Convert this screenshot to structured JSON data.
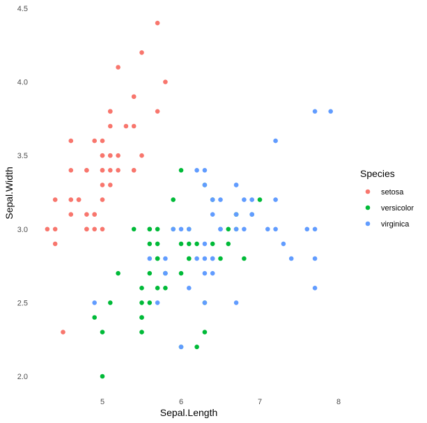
{
  "chart_data": {
    "type": "scatter",
    "xlabel": "Sepal.Length",
    "ylabel": "Sepal.Width",
    "xlim": [
      4.3,
      8.7
    ],
    "ylim": [
      1.95,
      4.5
    ],
    "x_ticks": [
      "5",
      "6",
      "7",
      "8"
    ],
    "y_ticks": [
      "2.0",
      "2.5",
      "3.0",
      "3.5",
      "4.0",
      "4.5"
    ],
    "grid": false,
    "legend": {
      "title": "Species",
      "position": "right"
    },
    "series": [
      {
        "name": "setosa",
        "color": "#F8766D",
        "points": [
          [
            5.1,
            3.5
          ],
          [
            4.9,
            3.0
          ],
          [
            4.7,
            3.2
          ],
          [
            4.6,
            3.1
          ],
          [
            5.0,
            3.6
          ],
          [
            5.4,
            3.9
          ],
          [
            4.6,
            3.4
          ],
          [
            5.0,
            3.4
          ],
          [
            4.4,
            2.9
          ],
          [
            4.9,
            3.1
          ],
          [
            5.4,
            3.7
          ],
          [
            4.8,
            3.4
          ],
          [
            4.8,
            3.0
          ],
          [
            4.3,
            3.0
          ],
          [
            5.8,
            4.0
          ],
          [
            5.7,
            4.4
          ],
          [
            5.4,
            3.9
          ],
          [
            5.1,
            3.5
          ],
          [
            5.7,
            3.8
          ],
          [
            5.1,
            3.8
          ],
          [
            5.4,
            3.4
          ],
          [
            5.1,
            3.7
          ],
          [
            4.6,
            3.6
          ],
          [
            5.1,
            3.3
          ],
          [
            4.8,
            3.4
          ],
          [
            5.0,
            3.0
          ],
          [
            5.0,
            3.4
          ],
          [
            5.2,
            3.5
          ],
          [
            5.2,
            3.4
          ],
          [
            4.7,
            3.2
          ],
          [
            4.8,
            3.1
          ],
          [
            5.4,
            3.4
          ],
          [
            5.2,
            4.1
          ],
          [
            5.5,
            4.2
          ],
          [
            4.9,
            3.1
          ],
          [
            5.0,
            3.2
          ],
          [
            5.5,
            3.5
          ],
          [
            4.9,
            3.6
          ],
          [
            4.4,
            3.0
          ],
          [
            5.1,
            3.4
          ],
          [
            5.0,
            3.5
          ],
          [
            4.5,
            2.3
          ],
          [
            4.4,
            3.2
          ],
          [
            5.0,
            3.5
          ],
          [
            5.1,
            3.8
          ],
          [
            4.8,
            3.0
          ],
          [
            5.1,
            3.8
          ],
          [
            4.6,
            3.2
          ],
          [
            5.3,
            3.7
          ],
          [
            5.0,
            3.3
          ]
        ]
      },
      {
        "name": "versicolor",
        "color": "#00BA38",
        "points": [
          [
            7.0,
            3.2
          ],
          [
            6.4,
            3.2
          ],
          [
            6.9,
            3.1
          ],
          [
            5.5,
            2.3
          ],
          [
            6.5,
            2.8
          ],
          [
            5.7,
            2.8
          ],
          [
            6.3,
            3.3
          ],
          [
            4.9,
            2.4
          ],
          [
            6.6,
            2.9
          ],
          [
            5.2,
            2.7
          ],
          [
            5.0,
            2.0
          ],
          [
            5.9,
            3.0
          ],
          [
            6.0,
            2.2
          ],
          [
            6.1,
            2.9
          ],
          [
            5.6,
            2.9
          ],
          [
            6.7,
            3.1
          ],
          [
            5.6,
            3.0
          ],
          [
            5.8,
            2.7
          ],
          [
            6.2,
            2.2
          ],
          [
            5.6,
            2.5
          ],
          [
            5.9,
            3.2
          ],
          [
            6.1,
            2.8
          ],
          [
            6.3,
            2.5
          ],
          [
            6.1,
            2.8
          ],
          [
            6.4,
            2.9
          ],
          [
            6.6,
            3.0
          ],
          [
            6.8,
            2.8
          ],
          [
            6.7,
            3.0
          ],
          [
            6.0,
            2.9
          ],
          [
            5.7,
            2.6
          ],
          [
            5.5,
            2.4
          ],
          [
            5.5,
            2.4
          ],
          [
            5.8,
            2.7
          ],
          [
            6.0,
            2.7
          ],
          [
            5.4,
            3.0
          ],
          [
            6.0,
            3.4
          ],
          [
            6.7,
            3.1
          ],
          [
            6.3,
            2.3
          ],
          [
            5.6,
            3.0
          ],
          [
            5.5,
            2.5
          ],
          [
            5.5,
            2.6
          ],
          [
            6.1,
            3.0
          ],
          [
            5.8,
            2.6
          ],
          [
            5.0,
            2.3
          ],
          [
            5.6,
            2.7
          ],
          [
            5.7,
            3.0
          ],
          [
            5.7,
            2.9
          ],
          [
            6.2,
            2.9
          ],
          [
            5.1,
            2.5
          ],
          [
            5.7,
            2.8
          ]
        ]
      },
      {
        "name": "virginica",
        "color": "#619CFF",
        "points": [
          [
            6.3,
            3.3
          ],
          [
            5.8,
            2.7
          ],
          [
            7.1,
            3.0
          ],
          [
            6.3,
            2.9
          ],
          [
            6.5,
            3.0
          ],
          [
            7.6,
            3.0
          ],
          [
            4.9,
            2.5
          ],
          [
            7.3,
            2.9
          ],
          [
            6.7,
            2.5
          ],
          [
            7.2,
            3.6
          ],
          [
            6.5,
            3.2
          ],
          [
            6.4,
            2.7
          ],
          [
            6.8,
            3.0
          ],
          [
            5.7,
            2.5
          ],
          [
            5.8,
            2.8
          ],
          [
            6.4,
            3.2
          ],
          [
            6.5,
            3.0
          ],
          [
            7.7,
            3.8
          ],
          [
            7.7,
            2.6
          ],
          [
            6.0,
            2.2
          ],
          [
            6.9,
            3.2
          ],
          [
            5.6,
            2.8
          ],
          [
            7.7,
            2.8
          ],
          [
            6.3,
            2.7
          ],
          [
            6.7,
            3.3
          ],
          [
            7.2,
            3.2
          ],
          [
            6.2,
            2.8
          ],
          [
            6.1,
            3.0
          ],
          [
            6.4,
            2.8
          ],
          [
            7.2,
            3.0
          ],
          [
            7.4,
            2.8
          ],
          [
            7.9,
            3.8
          ],
          [
            6.4,
            2.8
          ],
          [
            6.3,
            2.8
          ],
          [
            6.1,
            2.6
          ],
          [
            7.7,
            3.0
          ],
          [
            6.3,
            3.4
          ],
          [
            6.4,
            3.1
          ],
          [
            6.0,
            3.0
          ],
          [
            6.9,
            3.1
          ],
          [
            6.7,
            3.1
          ],
          [
            6.9,
            3.1
          ],
          [
            5.8,
            2.7
          ],
          [
            6.8,
            3.2
          ],
          [
            6.7,
            3.3
          ],
          [
            6.7,
            3.0
          ],
          [
            6.3,
            2.5
          ],
          [
            6.5,
            3.0
          ],
          [
            6.2,
            3.4
          ],
          [
            5.9,
            3.0
          ]
        ]
      }
    ]
  }
}
